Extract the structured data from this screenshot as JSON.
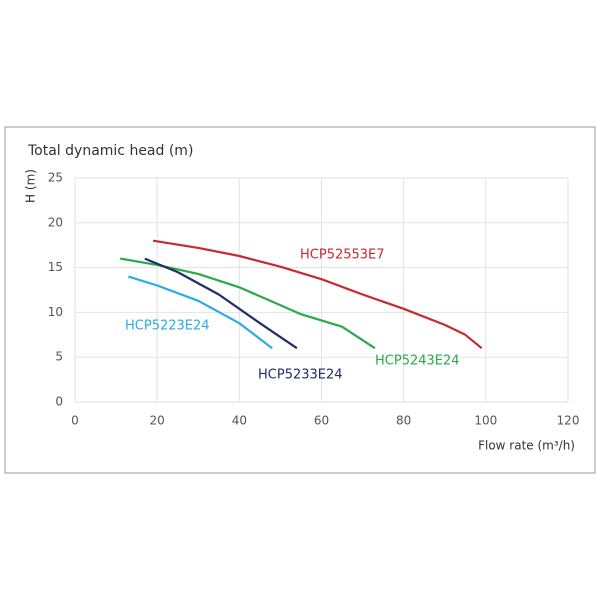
{
  "chart_data": {
    "type": "line",
    "title": "Total dynamic head (m)",
    "y_label": "H (m)",
    "x_label": "Flow rate (m³/h)",
    "xlim": [
      0,
      120
    ],
    "xticks": [
      0,
      20,
      40,
      60,
      80,
      100,
      120
    ],
    "ylim": [
      0,
      25
    ],
    "yticks": [
      0,
      5,
      10,
      15,
      20,
      25
    ],
    "grid": true,
    "series": [
      {
        "name": "HCP52553E7",
        "color": "#c62a2f",
        "x": [
          19,
          30,
          40,
          50,
          60,
          70,
          80,
          90,
          95,
          99
        ],
        "values": [
          18,
          17.2,
          16.3,
          15.1,
          13.7,
          12,
          10.4,
          8.6,
          7.5,
          6
        ]
      },
      {
        "name": "HCP5243E24",
        "color": "#2ca84c",
        "x": [
          11,
          20,
          30,
          40,
          48,
          55,
          65,
          73
        ],
        "values": [
          16,
          15.3,
          14.3,
          12.8,
          11.2,
          9.8,
          8.4,
          6
        ]
      },
      {
        "name": "HCP5233E24",
        "color": "#1f2d6b",
        "x": [
          17,
          25,
          35,
          45,
          54
        ],
        "values": [
          16,
          14.5,
          12,
          8.8,
          6
        ]
      },
      {
        "name": "HCP5223E24",
        "color": "#2aace2",
        "x": [
          13,
          20,
          30,
          40,
          48
        ],
        "values": [
          14,
          13,
          11.3,
          8.8,
          6
        ]
      }
    ]
  }
}
